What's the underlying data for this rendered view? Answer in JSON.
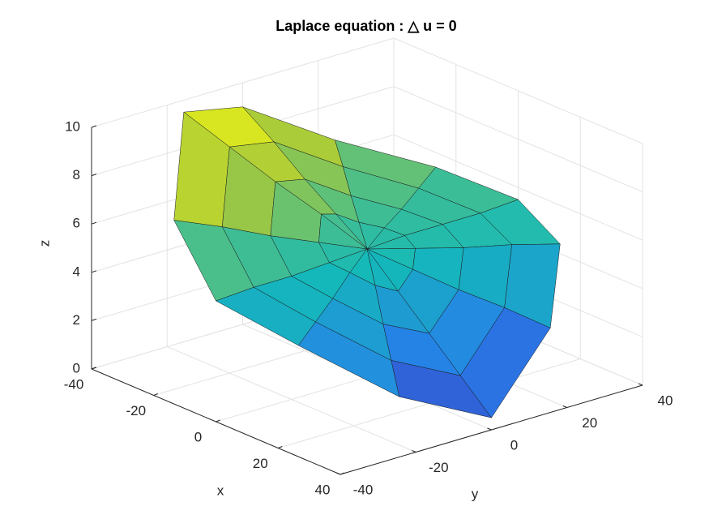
{
  "chart_data": {
    "type": "surface",
    "title": "Laplace equation : △ u = 0",
    "xlabel": "x",
    "ylabel": "y",
    "zlabel": "z",
    "r": [
      0,
      10,
      20,
      30,
      40
    ],
    "theta": [
      0,
      30,
      60,
      90,
      120,
      150,
      180,
      210,
      240,
      270,
      300,
      330
    ],
    "z": [
      [
        5.3,
        5.3,
        5.3,
        5.3,
        5.3,
        5.3,
        5.3,
        5.3,
        5.3,
        5.3,
        5.3,
        5.3
      ],
      [
        4.1,
        4.7,
        5.2,
        5.4,
        5.5,
        5.7,
        6.2,
        6.5,
        5.7,
        5.2,
        5.0,
        4.5
      ],
      [
        2.9,
        4.1,
        5.1,
        5.4,
        5.6,
        6.1,
        7.1,
        7.6,
        6.1,
        5.1,
        4.6,
        3.6
      ],
      [
        1.7,
        3.6,
        5.1,
        5.4,
        5.8,
        6.6,
        8.1,
        8.8,
        6.6,
        5.1,
        4.3,
        2.8
      ],
      [
        0.5,
        3,
        5,
        5.5,
        6,
        7,
        9,
        10,
        7,
        5,
        4,
        2
      ]
    ],
    "xlim": [
      -40,
      40
    ],
    "ylim": [
      -40,
      40
    ],
    "zlim": [
      0,
      10
    ],
    "xticks": [
      -40,
      -20,
      0,
      20,
      40
    ],
    "yticks": [
      -40,
      -20,
      0,
      20,
      40
    ],
    "zticks": [
      0,
      2,
      4,
      6,
      8,
      10
    ],
    "grid": true,
    "colormap": "parula"
  }
}
